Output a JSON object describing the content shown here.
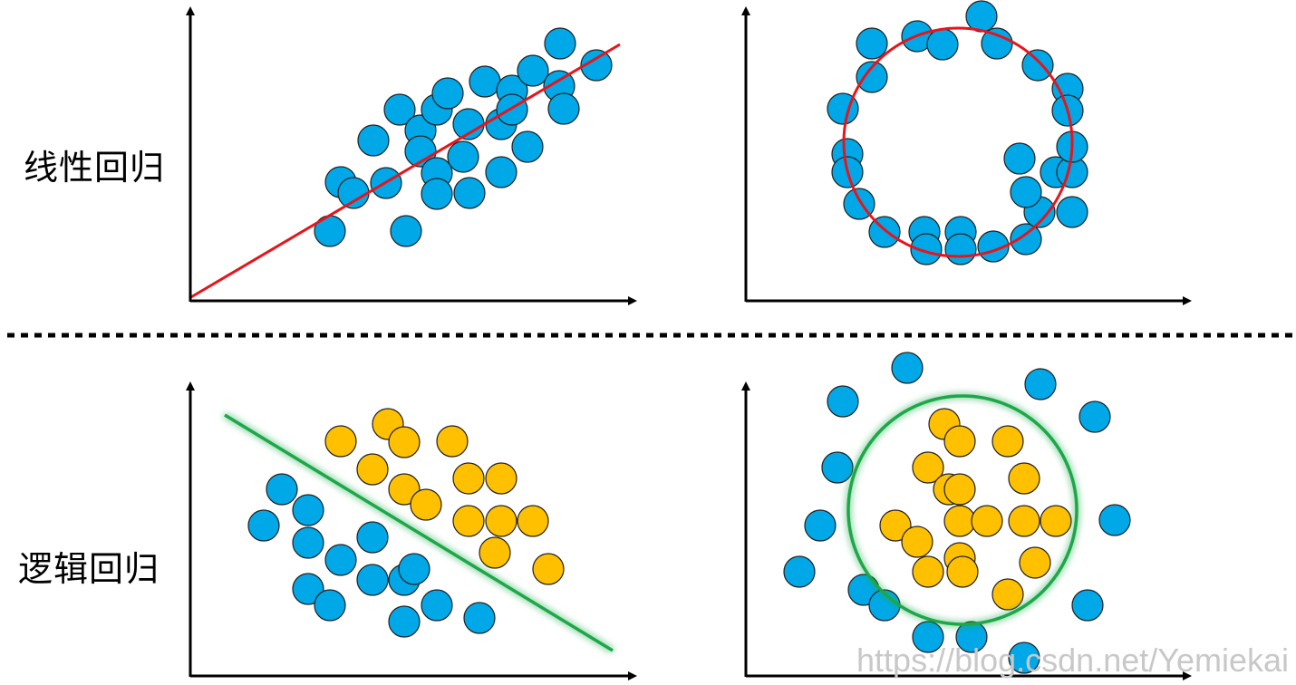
{
  "labels": {
    "linear_regression": "线性回归",
    "logistic_regression": "逻辑回归"
  },
  "watermark": "https://blog.csdn.net/Yemiekai",
  "colors": {
    "blue_point": "#00a8e8",
    "yellow_point": "#ffc000",
    "outline": "#1f1f1f",
    "red_fit": "#e8141b",
    "green_boundary": "#1aa84a",
    "axis": "#000000"
  },
  "panels": [
    {
      "id": "linear-line",
      "fit": "line",
      "blue": [
        [
          364,
          255
        ],
        [
          376,
          201
        ],
        [
          390,
          213
        ],
        [
          426,
          202
        ],
        [
          412,
          155
        ],
        [
          441,
          121
        ],
        [
          448,
          255
        ],
        [
          464,
          144
        ],
        [
          464,
          167
        ],
        [
          482,
          121
        ],
        [
          482,
          191
        ],
        [
          482,
          214
        ],
        [
          494,
          103
        ],
        [
          511,
          173
        ],
        [
          518,
          213
        ],
        [
          517,
          137
        ],
        [
          535,
          90
        ],
        [
          553,
          137
        ],
        [
          553,
          190
        ],
        [
          565,
          100
        ],
        [
          565,
          121
        ],
        [
          582,
          162
        ],
        [
          588,
          78
        ],
        [
          617,
          95
        ],
        [
          622,
          120
        ],
        [
          618,
          48
        ],
        [
          658,
          72
        ]
      ]
    },
    {
      "id": "linear-circle",
      "fit": "circle",
      "blue": [
        [
          962,
          48
        ],
        [
          1012,
          40
        ],
        [
          1040,
          49
        ],
        [
          1083,
          18
        ],
        [
          1100,
          48
        ],
        [
          1145,
          72
        ],
        [
          1178,
          98
        ],
        [
          1178,
          122
        ],
        [
          962,
          85
        ],
        [
          930,
          120
        ],
        [
          935,
          170
        ],
        [
          935,
          190
        ],
        [
          948,
          225
        ],
        [
          976,
          256
        ],
        [
          1020,
          256
        ],
        [
          1022,
          275
        ],
        [
          1060,
          256
        ],
        [
          1060,
          275
        ],
        [
          1096,
          272
        ],
        [
          1132,
          264
        ],
        [
          1147,
          234
        ],
        [
          1183,
          234
        ],
        [
          1132,
          212
        ],
        [
          1125,
          175
        ],
        [
          1165,
          190
        ],
        [
          1183,
          190
        ],
        [
          1183,
          162
        ]
      ]
    },
    {
      "id": "logistic-line",
      "fit": "line",
      "blue": [
        [
          311,
          540
        ],
        [
          340,
          563
        ],
        [
          291,
          580
        ],
        [
          340,
          599
        ],
        [
          376,
          618
        ],
        [
          411,
          593
        ],
        [
          411,
          640
        ],
        [
          446,
          640
        ],
        [
          457,
          628
        ],
        [
          340,
          650
        ],
        [
          364,
          668
        ],
        [
          446,
          686
        ],
        [
          482,
          668
        ],
        [
          529,
          682
        ]
      ],
      "yellow": [
        [
          376,
          487
        ],
        [
          428,
          468
        ],
        [
          446,
          488
        ],
        [
          499,
          487
        ],
        [
          411,
          518
        ],
        [
          446,
          540
        ],
        [
          470,
          557
        ],
        [
          517,
          528
        ],
        [
          553,
          528
        ],
        [
          517,
          575
        ],
        [
          553,
          575
        ],
        [
          588,
          575
        ],
        [
          546,
          610
        ],
        [
          605,
          628
        ]
      ]
    },
    {
      "id": "logistic-circle",
      "fit": "circle",
      "blue": [
        [
          1001,
          406
        ],
        [
          1148,
          424
        ],
        [
          930,
          443
        ],
        [
          1208,
          460
        ],
        [
          924,
          516
        ],
        [
          905,
          580
        ],
        [
          1230,
          574
        ],
        [
          882,
          631
        ],
        [
          953,
          651
        ],
        [
          976,
          668
        ],
        [
          1200,
          668
        ],
        [
          1024,
          703
        ],
        [
          1072,
          703
        ],
        [
          1130,
          726
        ]
      ],
      "yellow": [
        [
          1042,
          468
        ],
        [
          1059,
          487
        ],
        [
          1112,
          487
        ],
        [
          1024,
          516
        ],
        [
          1130,
          528
        ],
        [
          1047,
          540
        ],
        [
          1059,
          540
        ],
        [
          988,
          580
        ],
        [
          1012,
          598
        ],
        [
          1059,
          575
        ],
        [
          1089,
          575
        ],
        [
          1130,
          575
        ],
        [
          1165,
          575
        ],
        [
          1059,
          616
        ],
        [
          1024,
          631
        ],
        [
          1062,
          631
        ],
        [
          1142,
          621
        ],
        [
          1112,
          656
        ]
      ]
    }
  ]
}
